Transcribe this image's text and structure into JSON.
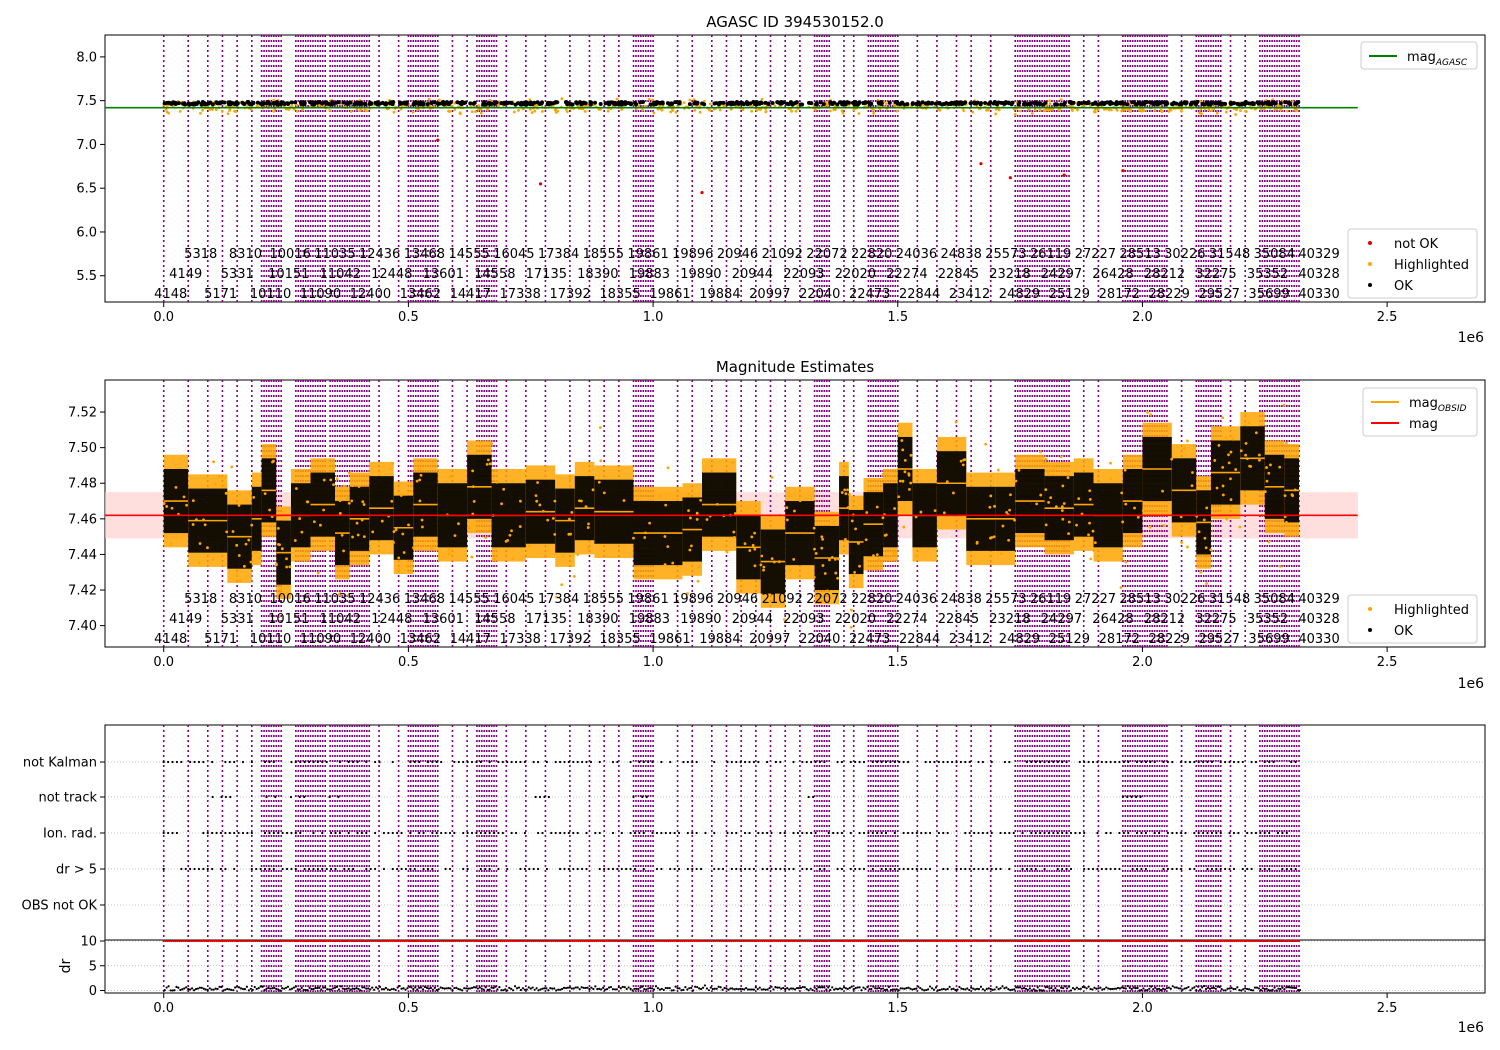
{
  "chart_data": [
    {
      "type": "scatter",
      "title": "AGASC ID 394530152.0",
      "xlabel": "",
      "ylabel": "",
      "xlim": [
        -120000,
        2700000
      ],
      "ylim": [
        5.2,
        8.25
      ],
      "x_multiplier_label": "1e6",
      "xticks": [
        0,
        500000,
        1000000,
        1500000,
        2000000,
        2500000
      ],
      "xtick_labels": [
        "0.0",
        "0.5",
        "1.0",
        "1.5",
        "2.0",
        "2.5"
      ],
      "yticks": [
        5.5,
        6.0,
        6.5,
        7.0,
        7.5,
        8.0
      ],
      "ytick_labels": [
        "5.5",
        "6.0",
        "6.5",
        "7.0",
        "7.5",
        "8.0"
      ],
      "x_data_extent": [
        0,
        2320000
      ],
      "series": [
        {
          "name": "OK",
          "color": "#000000",
          "type": "points",
          "approx_center": 7.47,
          "approx_spread": 0.03
        },
        {
          "name": "Highlighted",
          "color": "#ffa500",
          "type": "points",
          "approx_center": 7.43,
          "approx_spread": 0.12
        },
        {
          "name": "not OK",
          "color": "#e00000",
          "type": "points",
          "points": [
            [
              1100000,
              6.45
            ],
            [
              1960000,
              6.7
            ],
            [
              1840000,
              6.65
            ],
            [
              1670000,
              6.78
            ],
            [
              560000,
              7.05
            ],
            [
              1730000,
              6.62
            ],
            [
              770000,
              6.55
            ]
          ]
        },
        {
          "name": "mag_AGASC",
          "color": "#008000",
          "type": "hline",
          "value": 7.42,
          "x_range": [
            -120000,
            2440000
          ]
        }
      ],
      "legends": [
        {
          "position": "upper-right",
          "entries": [
            {
              "label": "mag",
              "sub": "AGASC",
              "color": "#008000",
              "kind": "line"
            }
          ]
        },
        {
          "position": "lower-right",
          "entries": [
            {
              "label": "not OK",
              "color": "#e00000",
              "kind": "dot"
            },
            {
              "label": "Highlighted",
              "color": "#ffa500",
              "kind": "dot"
            },
            {
              "label": "OK",
              "color": "#000000",
              "kind": "dot"
            }
          ]
        }
      ],
      "annotation_rows": [
        [
          "5318",
          "8310",
          "10016",
          "11035",
          "12436",
          "13468",
          "14555",
          "16045",
          "17384",
          "18555",
          "19861",
          "19896",
          "20946",
          "21092",
          "22072",
          "22820",
          "24036",
          "24838",
          "25573",
          "26119",
          "27227",
          "28513",
          "30226",
          "31548",
          "35084",
          "40329"
        ],
        [
          "4149",
          "5331",
          "10151",
          "11042",
          "12448",
          "13601",
          "14558",
          "17135",
          "18390",
          "19883",
          "19890",
          "20944",
          "22093",
          "22020",
          "22274",
          "22845",
          "23218",
          "24297",
          "26428",
          "28212",
          "32275",
          "35352",
          "40328"
        ],
        [
          "4148",
          "5171",
          "10110",
          "11090",
          "12400",
          "13462",
          "14417",
          "17338",
          "17392",
          "18355",
          "19861",
          "19884",
          "20997",
          "22040",
          "22473",
          "22844",
          "23412",
          "24829",
          "25129",
          "28172",
          "28229",
          "29527",
          "35699",
          "40330"
        ]
      ]
    },
    {
      "type": "scatter",
      "title": "Magnitude Estimates",
      "xlabel": "",
      "ylabel": "",
      "xlim": [
        -120000,
        2700000
      ],
      "ylim": [
        7.388,
        7.538
      ],
      "x_multiplier_label": "1e6",
      "xticks": [
        0,
        500000,
        1000000,
        1500000,
        2000000,
        2500000
      ],
      "xtick_labels": [
        "0.0",
        "0.5",
        "1.0",
        "1.5",
        "2.0",
        "2.5"
      ],
      "yticks": [
        7.4,
        7.42,
        7.44,
        7.46,
        7.48,
        7.5,
        7.52
      ],
      "ytick_labels": [
        "7.40",
        "7.42",
        "7.44",
        "7.46",
        "7.48",
        "7.50",
        "7.52"
      ],
      "mag": 7.462,
      "mag_band": [
        7.449,
        7.475
      ],
      "mag_x_range": [
        -120000,
        2440000
      ],
      "obsid_segments": [
        [
          0,
          50000,
          7.47
        ],
        [
          50000,
          130000,
          7.459
        ],
        [
          130000,
          180000,
          7.45
        ],
        [
          180000,
          200000,
          7.46
        ],
        [
          200000,
          230000,
          7.476
        ],
        [
          230000,
          260000,
          7.441
        ],
        [
          260000,
          300000,
          7.462
        ],
        [
          300000,
          350000,
          7.468
        ],
        [
          350000,
          380000,
          7.452
        ],
        [
          380000,
          420000,
          7.46
        ],
        [
          420000,
          470000,
          7.466
        ],
        [
          470000,
          510000,
          7.455
        ],
        [
          510000,
          560000,
          7.468
        ],
        [
          560000,
          620000,
          7.462
        ],
        [
          620000,
          670000,
          7.478
        ],
        [
          670000,
          740000,
          7.462
        ],
        [
          740000,
          800000,
          7.464
        ],
        [
          800000,
          840000,
          7.459
        ],
        [
          840000,
          880000,
          7.466
        ],
        [
          880000,
          960000,
          7.464
        ],
        [
          960000,
          1060000,
          7.452
        ],
        [
          1060000,
          1100000,
          7.454
        ],
        [
          1100000,
          1170000,
          7.468
        ],
        [
          1170000,
          1220000,
          7.444
        ],
        [
          1220000,
          1270000,
          7.436
        ],
        [
          1270000,
          1330000,
          7.452
        ],
        [
          1330000,
          1380000,
          7.438
        ],
        [
          1380000,
          1400000,
          7.466
        ],
        [
          1400000,
          1430000,
          7.447
        ],
        [
          1430000,
          1470000,
          7.457
        ],
        [
          1470000,
          1500000,
          7.462
        ],
        [
          1500000,
          1530000,
          7.488
        ],
        [
          1530000,
          1580000,
          7.462
        ],
        [
          1580000,
          1640000,
          7.48
        ],
        [
          1640000,
          1700000,
          7.46
        ],
        [
          1700000,
          1740000,
          7.46
        ],
        [
          1740000,
          1800000,
          7.47
        ],
        [
          1800000,
          1860000,
          7.466
        ],
        [
          1860000,
          1900000,
          7.468
        ],
        [
          1900000,
          1960000,
          7.462
        ],
        [
          1960000,
          2000000,
          7.47
        ],
        [
          2000000,
          2060000,
          7.488
        ],
        [
          2060000,
          2110000,
          7.476
        ],
        [
          2110000,
          2140000,
          7.458
        ],
        [
          2140000,
          2200000,
          7.486
        ],
        [
          2200000,
          2250000,
          7.494
        ],
        [
          2250000,
          2290000,
          7.478
        ],
        [
          2290000,
          2320000,
          7.476
        ]
      ],
      "series": [
        {
          "name": "OK",
          "color": "#000000",
          "type": "points"
        },
        {
          "name": "Highlighted",
          "color": "#ffa500",
          "type": "points"
        },
        {
          "name": "mag_OBSID",
          "color": "#ffa500",
          "type": "line"
        },
        {
          "name": "mag",
          "color": "#ff0000",
          "type": "hline",
          "value": 7.462
        }
      ],
      "legends": [
        {
          "position": "upper-right",
          "entries": [
            {
              "label": "mag",
              "sub": "OBSID",
              "color": "#ffa500",
              "kind": "line"
            },
            {
              "label": "mag",
              "sub": "",
              "color": "#ff0000",
              "kind": "line"
            }
          ]
        },
        {
          "position": "lower-right",
          "entries": [
            {
              "label": "Highlighted",
              "color": "#ffa500",
              "kind": "dot"
            },
            {
              "label": "OK",
              "color": "#000000",
              "kind": "dot"
            }
          ]
        }
      ]
    },
    {
      "type": "scatter",
      "title": "",
      "xlabel": "",
      "ylabel": "",
      "xlim": [
        -120000,
        2700000
      ],
      "x_multiplier_label": "1e6",
      "xticks": [
        0,
        500000,
        1000000,
        1500000,
        2000000,
        2500000
      ],
      "xtick_labels": [
        "0.0",
        "0.5",
        "1.0",
        "1.5",
        "2.0",
        "2.5"
      ],
      "flag_rows": [
        "not Kalman",
        "not track",
        "Ion. rad.",
        "dr > 5",
        "OBS not OK"
      ],
      "flag_row_intervals": [
        [
          [
            0,
            2320000
          ]
        ],
        [
          [
            100000,
            140000
          ],
          [
            210000,
            230000
          ],
          [
            260000,
            290000
          ],
          [
            330000,
            360000
          ],
          [
            760000,
            790000
          ],
          [
            960000,
            990000
          ],
          [
            1300000,
            1340000
          ],
          [
            1960000,
            2000000
          ]
        ],
        [
          [
            0,
            2320000
          ]
        ],
        [
          [
            0,
            2320000
          ]
        ],
        []
      ]
    },
    {
      "type": "scatter",
      "title": "",
      "xlabel": "",
      "ylabel": "dr",
      "xlim": [
        -120000,
        2700000
      ],
      "ylim": [
        -0.5,
        10.2
      ],
      "x_multiplier_label": "1e6",
      "xticks": [
        0,
        500000,
        1000000,
        1500000,
        2000000,
        2500000
      ],
      "xtick_labels": [
        "0.0",
        "0.5",
        "1.0",
        "1.5",
        "2.0",
        "2.5"
      ],
      "yticks": [
        0,
        5,
        10
      ],
      "ytick_labels": [
        "0",
        "5",
        "10"
      ],
      "threshold": 10,
      "series": [
        {
          "name": "dr",
          "color": "#000000",
          "type": "points",
          "approx_center": 0.4
        },
        {
          "name": "dr > 10",
          "color": "#e00000",
          "type": "points",
          "value": 10
        }
      ]
    }
  ],
  "obs_boundaries_dense_ranges": [
    [
      200000,
      240000
    ],
    [
      270000,
      330000
    ],
    [
      340000,
      420000
    ],
    [
      500000,
      560000
    ],
    [
      640000,
      680000
    ],
    [
      960000,
      1000000
    ],
    [
      1330000,
      1360000
    ],
    [
      1440000,
      1500000
    ],
    [
      1740000,
      1850000
    ],
    [
      1960000,
      2050000
    ],
    [
      2110000,
      2160000
    ],
    [
      2240000,
      2320000
    ]
  ],
  "obs_boundaries_sparse": [
    0,
    50000,
    90000,
    120000,
    150000,
    180000,
    440000,
    480000,
    590000,
    620000,
    700000,
    740000,
    780000,
    830000,
    870000,
    900000,
    930000,
    1050000,
    1080000,
    1120000,
    1150000,
    1180000,
    1210000,
    1240000,
    1270000,
    1300000,
    1390000,
    1410000,
    1540000,
    1580000,
    1620000,
    1650000,
    1690000,
    1880000,
    1910000,
    2080000,
    2180000,
    2210000
  ],
  "colors": {
    "boundary": "#800080",
    "ok": "#000000",
    "highlighted": "#ffa500",
    "not_ok": "#e00000",
    "mag": "#ff0000",
    "mag_band": "#ffc8c8",
    "mag_agasc": "#008000",
    "grid": "#b0b0b0"
  }
}
